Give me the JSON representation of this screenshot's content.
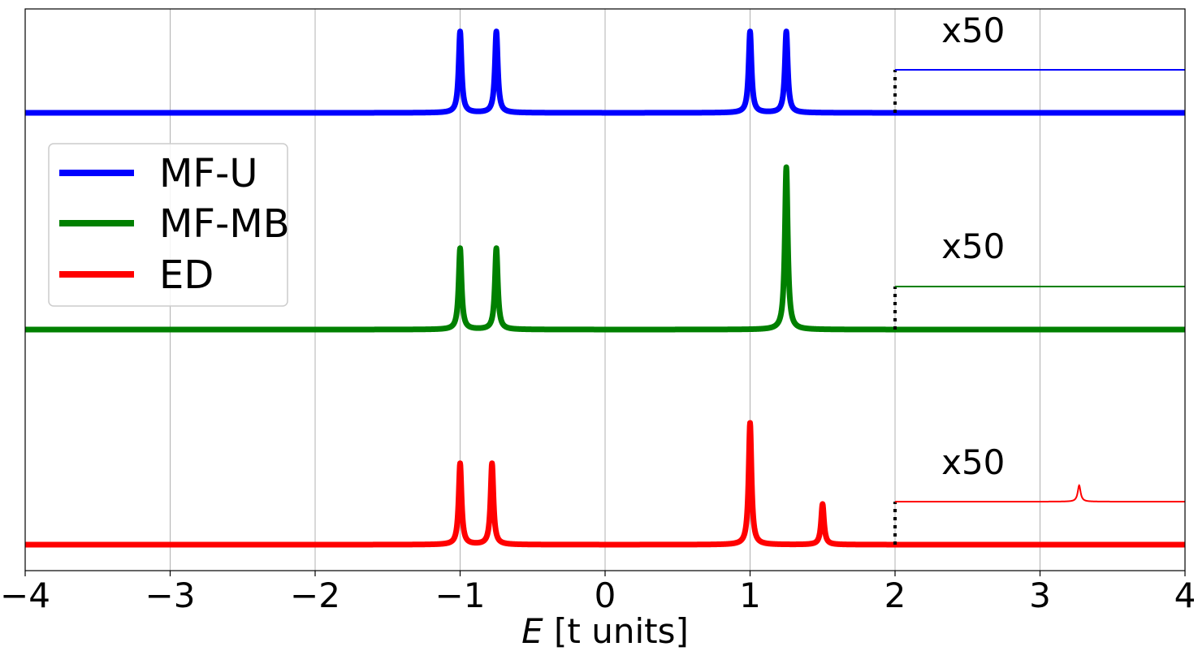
{
  "chart_data": {
    "type": "line",
    "xlabel_italic": "E",
    "xlabel_rest": " [t units]",
    "xlim": [
      -4,
      4
    ],
    "xticks": [
      -4,
      -3,
      -2,
      -1,
      0,
      1,
      2,
      3,
      4
    ],
    "xtick_labels": [
      "−4",
      "−3",
      "−2",
      "−1",
      "0",
      "1",
      "2",
      "3",
      "4"
    ],
    "grid": "vertical",
    "legend_position": "middle-left",
    "magnify_from_x": 2,
    "series": [
      {
        "name": "MF-U",
        "color": "#0000ff",
        "peaks": [
          {
            "x": -1.0,
            "height": 1.0
          },
          {
            "x": -0.75,
            "height": 1.0
          },
          {
            "x": 1.0,
            "height": 1.0
          },
          {
            "x": 1.25,
            "height": 1.0
          }
        ],
        "magnified_peaks": [],
        "annotation": "x50"
      },
      {
        "name": "MF-MB",
        "color": "#008000",
        "peaks": [
          {
            "x": -1.0,
            "height": 1.0
          },
          {
            "x": -0.75,
            "height": 1.0
          },
          {
            "x": 1.25,
            "height": 2.0
          }
        ],
        "magnified_peaks": [],
        "annotation": "x50"
      },
      {
        "name": "ED",
        "color": "#ff0000",
        "peaks": [
          {
            "x": -1.0,
            "height": 1.0
          },
          {
            "x": -0.78,
            "height": 1.0
          },
          {
            "x": 1.0,
            "height": 1.5
          },
          {
            "x": 1.5,
            "height": 0.5
          }
        ],
        "magnified_peaks": [
          {
            "x": 3.27,
            "height": 0.2
          }
        ],
        "annotation": "x50"
      }
    ]
  }
}
